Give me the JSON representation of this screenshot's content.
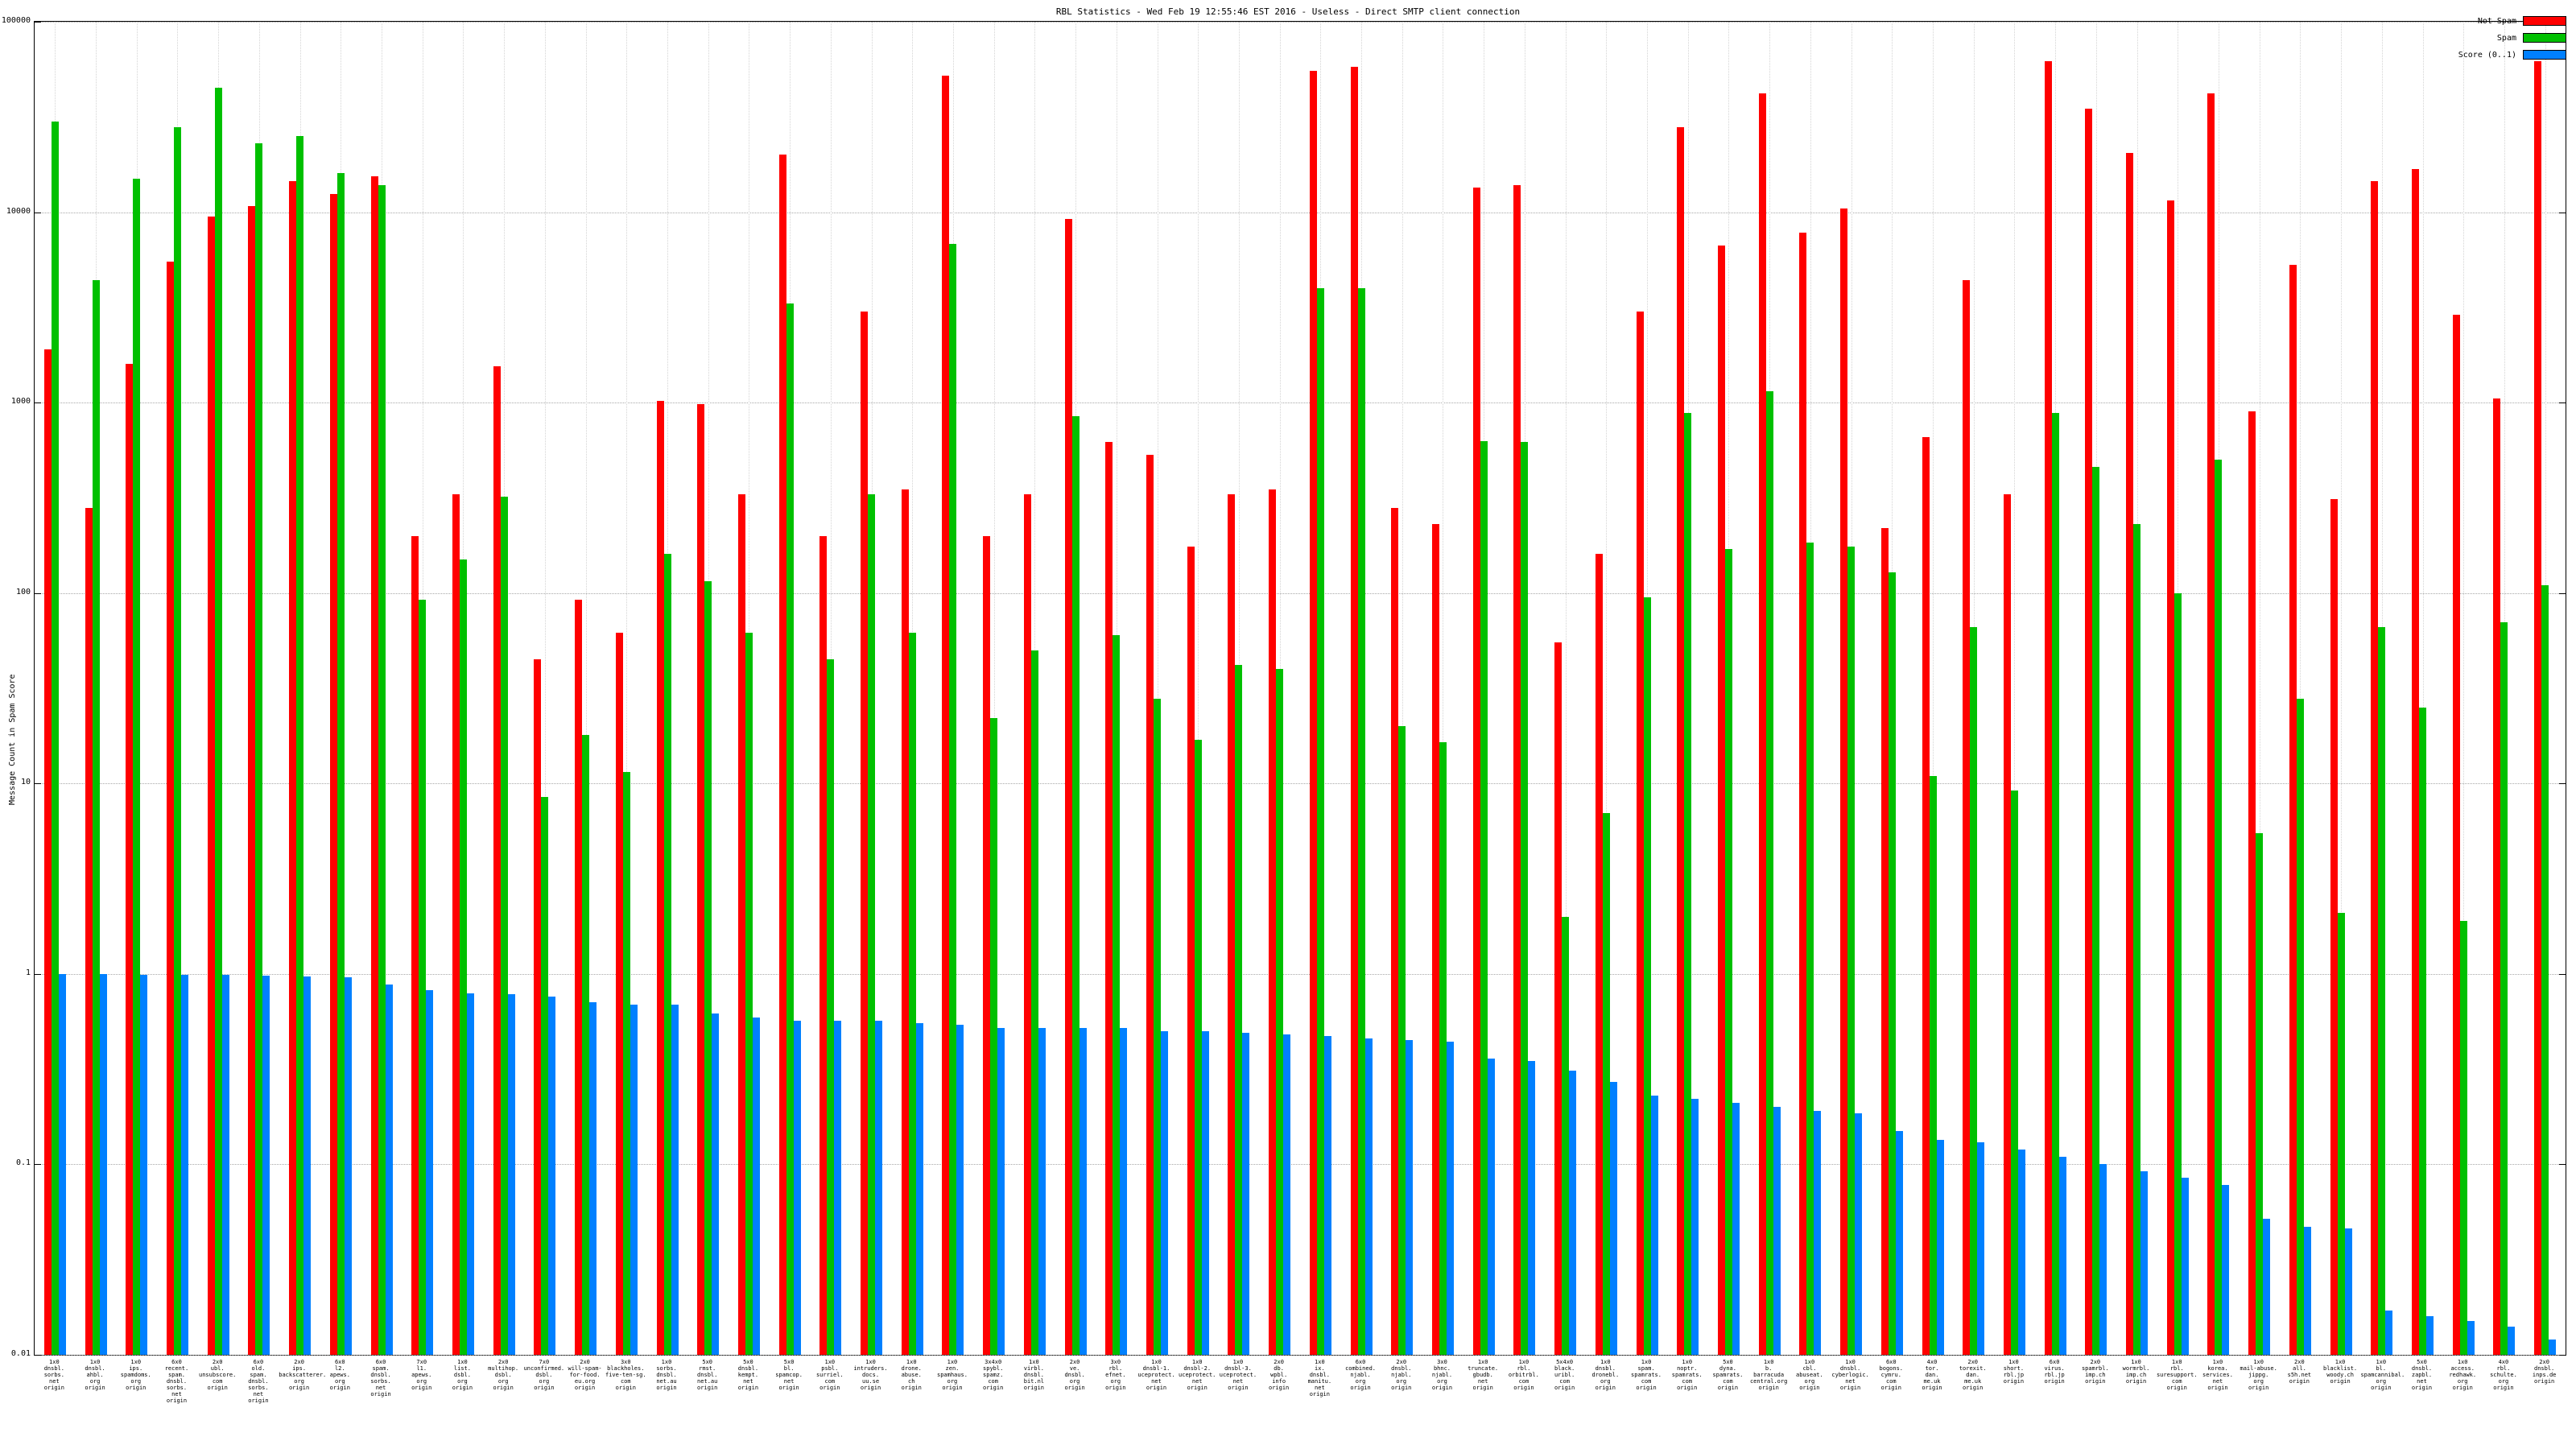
{
  "chart_data": {
    "type": "bar",
    "title": "RBL Statistics - Wed Feb 19 12:55:46 EST 2016 - Useless - Direct SMTP client connection",
    "xlabel": "",
    "ylabel": "Message Count in Spam Score",
    "scale": "log",
    "ylim": [
      0.01,
      100000
    ],
    "yticks": [
      "100000",
      "10000",
      "1000",
      "100",
      "10",
      "1",
      "0.1",
      "0.01"
    ],
    "grid": true,
    "legend_position": "top-right",
    "categories": [
      "1x0\ndnsbl.\nsorbs.\nnet\norigin",
      "1x0\ndnsbl.\nahbl.\norg\norigin",
      "1x0\nips.\nspamdoms.\norg\norigin",
      "6x0\nrecent.\nspam.\ndnsbl.\nsorbs.\nnet\norigin",
      "2x0\nubl.\nunsubscore.\ncom\norigin",
      "6x0\nold.\nspam.\ndnsbl.\nsorbs.\nnet\norigin",
      "2x0\nips.\nbackscatterer.\norg\norigin",
      "6x0\nl2.\napews.\norg\norigin",
      "6x0\nspam.\ndnsbl.\nsorbs.\nnet\norigin",
      "7x0\nl1.\napews.\norg\norigin",
      "1x0\nlist.\ndsbl.\norg\norigin",
      "2x0\nmultihop.\ndsbl.\norg\norigin",
      "7x0\nunconfirmed.\ndsbl.\norg\norigin",
      "2x0\nwill-spam-\nfor-food.\neu.org\norigin",
      "3x0\nblackholes.\nfive-ten-sg.\ncom\norigin",
      "1x0\nsorbs.\ndnsbl.\nnet.au\norigin",
      "5x0\nrmst.\ndnsbl.\nnet.au\norigin",
      "5x0\ndnsbl.\nkempt.\nnet\norigin",
      "5x0\nbl.\nspamcop.\nnet\norigin",
      "1x0\npsbl.\nsurriel.\ncom\norigin",
      "1x0\nintruders.\ndocs.\nuu.se\norigin",
      "1x0\ndrone.\nabuse.\nch\norigin",
      "1x0\nzen.\nspamhaus.\norg\norigin",
      "3x4x0\nspybl.\nspamz.\ncom\norigin",
      "1x0\nvirbl.\ndnsbl.\nbit.nl\norigin",
      "2x0\nve.\ndnsbl.\norg\norigin",
      "3x0\nrbl.\nefnet.\norg\norigin",
      "1x0\ndnsbl-1.\nuceprotect.\nnet\norigin",
      "1x0\ndnsbl-2.\nuceprotect.\nnet\norigin",
      "1x0\ndnsbl-3.\nuceprotect.\nnet\norigin",
      "2x0\ndb.\nwpbl.\ninfo\norigin",
      "1x0\nix.\ndnsbl.\nmanitu.\nnet\norigin",
      "6x0\ncombined.\nnjabl.\norg\norigin",
      "2x0\ndnsbl.\nnjabl.\norg\norigin",
      "3x0\nbhnc.\nnjabl.\norg\norigin",
      "1x0\ntruncate.\ngbudb.\nnet\norigin",
      "1x0\nrbl.\norbitrbl.\ncom\norigin",
      "5x4x0\nblack.\nuribl.\ncom\norigin",
      "1x0\ndnsbl.\ndronebl.\norg\norigin",
      "1x0\nspam.\nspamrats.\ncom\norigin",
      "1x0\nnoptr.\nspamrats.\ncom\norigin",
      "5x0\ndyna.\nspamrats.\ncom\norigin",
      "1x0\nb.\nbarracuda\ncentral.org\norigin",
      "1x0\ncbl.\nabuseat.\norg\norigin",
      "1x0\ndnsbl.\ncyberlogic.\nnet\norigin",
      "6x0\nbogons.\ncymru.\ncom\norigin",
      "4x0\ntor.\ndan.\nme.uk\norigin",
      "2x0\ntorexit.\ndan.\nme.uk\norigin",
      "1x0\nshort.\nrbl.jp\norigin",
      "6x0\nvirus.\nrbl.jp\norigin",
      "2x0\nspamrbl.\nimp.ch\norigin",
      "1x0\nwormrbl.\nimp.ch\norigin",
      "1x0\nrbl.\nsuresupport.\ncom\norigin",
      "1x0\nkorea.\nservices.\nnet\norigin",
      "1x0\nmail-abuse.\njippg.\norg\norigin",
      "2x0\nall.\ns5h.net\norigin",
      "1x0\nblacklist.\nwoody.ch\norigin",
      "1x0\nbl.\nspamcannibal.\norg\norigin",
      "5x0\ndnsbl.\nzapbl.\nnet\norigin",
      "1x0\naccess.\nredhawk.\norg\norigin",
      "4x0\nrbl.\nschulte.\norg\norigin",
      "2x0\ndnsbl.\ninps.de\norigin"
    ],
    "series": [
      {
        "name": "Not Spam",
        "color": "#ff0000",
        "values": [
          1900,
          280,
          1600,
          5500,
          9500,
          10800,
          14500,
          12500,
          15500,
          200,
          330,
          1550,
          45,
          92,
          62,
          1020,
          980,
          330,
          20000,
          200,
          3000,
          350,
          52000,
          200,
          330,
          9200,
          620,
          530,
          175,
          330,
          350,
          55000,
          58000,
          280,
          230,
          13500,
          13800,
          55,
          160,
          3000,
          28000,
          6700,
          42000,
          7800,
          10500,
          220,
          660,
          4400,
          330,
          62000,
          35000,
          20500,
          11500,
          42000,
          900,
          5300,
          310,
          14500,
          16800,
          2900,
          1050,
          62000
        ]
      },
      {
        "name": "Spam",
        "color": "#00c000",
        "values": [
          30000,
          4400,
          15000,
          28000,
          45000,
          23000,
          25000,
          16000,
          13800,
          92,
          150,
          320,
          8.5,
          18,
          11.5,
          160,
          115,
          62,
          3300,
          45,
          330,
          62,
          6800,
          22,
          50,
          850,
          60,
          28,
          17,
          42,
          40,
          4000,
          4000,
          20,
          16.5,
          630,
          620,
          2,
          7,
          95,
          880,
          170,
          1150,
          185,
          175,
          128,
          11,
          66,
          9.2,
          880,
          460,
          230,
          100,
          500,
          5.5,
          28,
          2.1,
          66,
          25,
          1.9,
          70,
          110
        ]
      },
      {
        "name": "Score (0..1)",
        "color": "#0080ff",
        "values": [
          1.0,
          1.0,
          0.99,
          0.99,
          0.99,
          0.98,
          0.97,
          0.96,
          0.88,
          0.82,
          0.79,
          0.78,
          0.76,
          0.71,
          0.69,
          0.69,
          0.62,
          0.59,
          0.57,
          0.57,
          0.57,
          0.55,
          0.54,
          0.52,
          0.52,
          0.52,
          0.52,
          0.5,
          0.5,
          0.49,
          0.48,
          0.47,
          0.46,
          0.45,
          0.44,
          0.36,
          0.35,
          0.31,
          0.27,
          0.23,
          0.22,
          0.21,
          0.2,
          0.19,
          0.185,
          0.15,
          0.135,
          0.13,
          0.12,
          0.11,
          0.1,
          0.092,
          0.085,
          0.078,
          0.052,
          0.047,
          0.046,
          0.017,
          0.016,
          0.015,
          0.014,
          0.012
        ]
      }
    ]
  }
}
